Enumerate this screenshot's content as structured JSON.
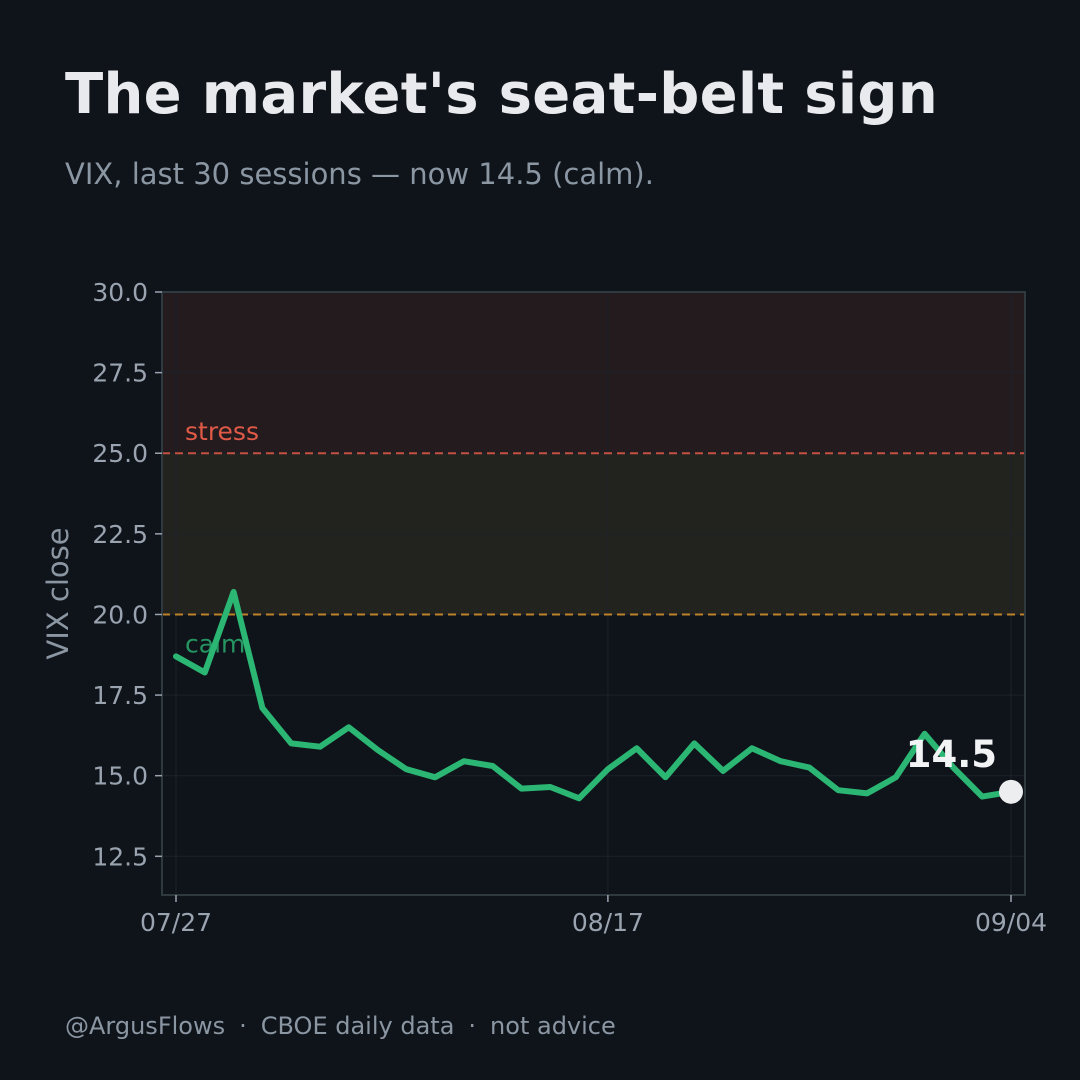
{
  "header": {
    "title": "The market's seat-belt sign",
    "subtitle": "VIX, last 30 sessions — now 14.5 (calm)."
  },
  "footer": {
    "handle": "@ArgusFlows",
    "source": "CBOE daily data",
    "disclaimer": "not advice",
    "separator": "·"
  },
  "colors": {
    "background": "#0f131a",
    "line": "#2bb673",
    "stress": "#e05a47",
    "caution": "#d9952b",
    "stress_band": "#231b1e",
    "caution_band": "#22221f",
    "grid": "#1c2229",
    "frame": "#2e3a40",
    "marker": "#eceef0"
  },
  "chart_data": {
    "type": "line",
    "ylabel": "VIX close",
    "ylim": [
      11.3,
      30.0
    ],
    "y_ticks": [
      "12.5",
      "15.0",
      "17.5",
      "20.0",
      "22.5",
      "25.0",
      "27.5",
      "30.0"
    ],
    "x_ticks": [
      {
        "label": "07/27",
        "index": 0
      },
      {
        "label": "08/17",
        "index": 15
      },
      {
        "label": "09/04",
        "index": 29
      }
    ],
    "grid": true,
    "thresholds": [
      {
        "name": "stress",
        "value": 25.0,
        "label": "stress"
      },
      {
        "name": "calm",
        "value": 20.0,
        "label": "calm"
      }
    ],
    "series": [
      {
        "values": [
          18.7,
          18.2,
          20.7,
          17.1,
          16.0,
          15.9,
          16.5,
          15.8,
          15.2,
          14.95,
          15.45,
          15.3,
          14.6,
          14.65,
          14.3,
          15.2,
          15.85,
          14.95,
          16.0,
          15.15,
          15.85,
          15.45,
          15.25,
          14.55,
          14.45,
          14.95,
          16.3,
          15.25,
          14.35,
          14.5
        ]
      }
    ],
    "last_value_label": "14.5"
  }
}
